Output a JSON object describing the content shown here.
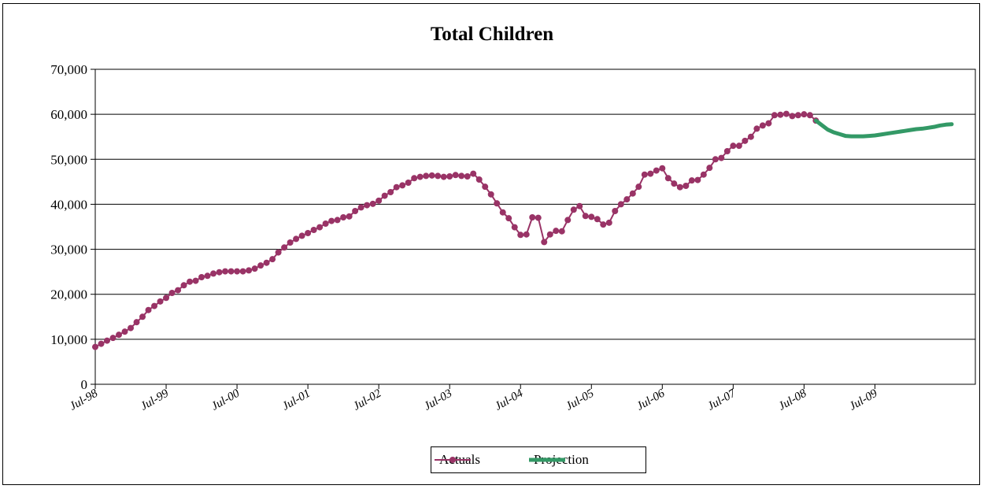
{
  "chart_data": {
    "type": "line",
    "title": "Total Children",
    "xlabel": "",
    "ylabel": "",
    "ylim": [
      0,
      70000
    ],
    "y_ticks": [
      "0",
      "10,000",
      "20,000",
      "30,000",
      "40,000",
      "50,000",
      "60,000",
      "70,000"
    ],
    "x_tick_labels": [
      "Jul-98",
      "Jul-99",
      "Jul-00",
      "Jul-01",
      "Jul-02",
      "Jul-03",
      "Jul-04",
      "Jul-05",
      "Jul-06",
      "Jul-07",
      "Jul-08",
      "Jul-09"
    ],
    "x_range_months": [
      "Jul-98",
      "Dec-10"
    ],
    "grid": "horizontal",
    "legend_position": "bottom",
    "series": [
      {
        "name": "Actuals",
        "color": "#993366",
        "marker": "circle",
        "start": "Jul-98",
        "values": [
          8300,
          9000,
          9700,
          10300,
          11000,
          11700,
          12500,
          13800,
          15000,
          16500,
          17400,
          18400,
          19200,
          20300,
          20900,
          22000,
          22800,
          23000,
          23800,
          24100,
          24600,
          24900,
          25100,
          25100,
          25100,
          25100,
          25300,
          25700,
          26400,
          27000,
          27800,
          29300,
          30400,
          31500,
          32300,
          33000,
          33600,
          34300,
          34900,
          35700,
          36300,
          36500,
          37100,
          37300,
          38500,
          39300,
          39800,
          40100,
          40800,
          41900,
          42700,
          43800,
          44200,
          44800,
          45800,
          46100,
          46300,
          46400,
          46300,
          46100,
          46200,
          46500,
          46300,
          46200,
          46800,
          45500,
          43900,
          42200,
          40200,
          38200,
          36900,
          34900,
          33200,
          33300,
          37100,
          37000,
          31600,
          33300,
          34100,
          34000,
          36500,
          38800,
          39600,
          37400,
          37200,
          36700,
          35500,
          35900,
          38500,
          40000,
          41100,
          42400,
          43900,
          46600,
          46800,
          47500,
          48000,
          45800,
          44600,
          43800,
          44100,
          45300,
          45400,
          46600,
          48100,
          50000,
          50300,
          51800,
          53000,
          53000,
          54100,
          55000,
          56800,
          57500,
          58000,
          59800,
          59900,
          60100,
          59600,
          59800,
          60000,
          59800,
          58600
        ]
      },
      {
        "name": "Projection",
        "color": "#339966",
        "marker": "none",
        "start": "Sep-08",
        "values": [
          58600,
          57600,
          56600,
          56000,
          55600,
          55200,
          55100,
          55100,
          55100,
          55200,
          55300,
          55500,
          55700,
          55900,
          56100,
          56300,
          56500,
          56700,
          56800,
          57000,
          57200,
          57500,
          57700,
          57800
        ]
      }
    ]
  }
}
